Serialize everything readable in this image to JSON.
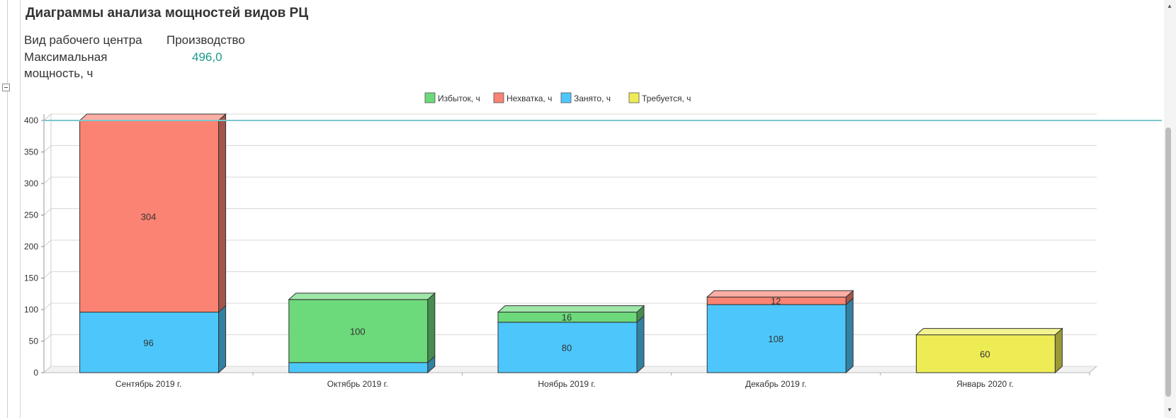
{
  "header": {
    "title": "Диаграммы анализа мощностей видов РЦ",
    "wc_type_label": "Вид рабочего центра",
    "wc_type_value": "Производство",
    "max_capacity_label_line1": "Максимальная",
    "max_capacity_label_line2": "мощность, ч",
    "max_capacity_value": "496,0"
  },
  "chart_data": {
    "type": "bar",
    "stacked": true,
    "categories": [
      "Сентябрь 2019 г.",
      "Октябрь 2019 г.",
      "Ноябрь 2019 г.",
      "Декабрь 2019 г.",
      "Январь 2020 г."
    ],
    "series": [
      {
        "name": "Избыток, ч",
        "color": "#6cd97a",
        "values": [
          0,
          100,
          16,
          0,
          0
        ]
      },
      {
        "name": "Нехватка, ч",
        "color": "#fa8373",
        "values": [
          304,
          0,
          0,
          12,
          0
        ]
      },
      {
        "name": "Занято, ч",
        "color": "#4dc7fb",
        "values": [
          96,
          16,
          80,
          108,
          0
        ]
      },
      {
        "name": "Требуется, ч",
        "color": "#eeec55",
        "values": [
          0,
          0,
          0,
          0,
          60
        ]
      }
    ],
    "stack_order": [
      "Занято, ч",
      "Требуется, ч",
      "Избыток, ч",
      "Нехватка, ч"
    ],
    "data_labels": [
      {
        "category": 0,
        "series": "Нехватка, ч",
        "text": "304"
      },
      {
        "category": 0,
        "series": "Занято, ч",
        "text": "96"
      },
      {
        "category": 1,
        "series": "Избыток, ч",
        "text": "100"
      },
      {
        "category": 2,
        "series": "Избыток, ч",
        "text": "16"
      },
      {
        "category": 2,
        "series": "Занято, ч",
        "text": "80"
      },
      {
        "category": 3,
        "series": "Нехватка, ч",
        "text": "12"
      },
      {
        "category": 3,
        "series": "Занято, ч",
        "text": "108"
      },
      {
        "category": 4,
        "series": "Требуется, ч",
        "text": "60"
      }
    ],
    "yticks": [
      0,
      50,
      100,
      150,
      200,
      250,
      300,
      350,
      400
    ],
    "ylim": [
      0,
      400
    ],
    "reference_line": {
      "value": 400,
      "color": "#7cc7cc"
    },
    "grid": true,
    "legend_position": "top-center",
    "title": "",
    "xlabel": "",
    "ylabel": ""
  }
}
